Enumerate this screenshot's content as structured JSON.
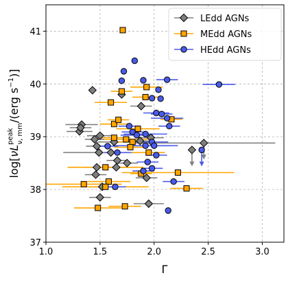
{
  "chart_data": {
    "type": "scatter",
    "xlabel": "Γ",
    "ylabel_parts": {
      "prefix": "log[",
      "nu": "ν",
      "L": "L",
      "sup": "peak",
      "sub": "ν, mm",
      "suffix": "/(erg s",
      "exp": "−1",
      "close": ")]"
    },
    "xlim": [
      1.0,
      3.2
    ],
    "ylim": [
      37.0,
      41.5
    ],
    "xticks": [
      "1.0",
      "1.5",
      "2.0",
      "2.5",
      "3.0"
    ],
    "yticks": [
      "37",
      "38",
      "39",
      "40",
      "41"
    ],
    "grid": true,
    "legend_position": "top-right",
    "series": [
      {
        "name": "LEdd AGNs",
        "marker": "diamond",
        "fill": "#7f7f7f",
        "errcolor": "#808080",
        "points": [
          {
            "x": 1.43,
            "y": 39.88,
            "xerr": 0.0
          },
          {
            "x": 1.33,
            "y": 39.23,
            "xerr": 0.15
          },
          {
            "x": 1.31,
            "y": 39.1,
            "xerr": 0.12
          },
          {
            "x": 1.32,
            "y": 39.17,
            "xerr": 0.1
          },
          {
            "x": 1.5,
            "y": 39.02,
            "xerr": 0.12
          },
          {
            "x": 1.47,
            "y": 38.82,
            "xerr": 0.1
          },
          {
            "x": 1.45,
            "y": 38.95,
            "xerr": 0.09
          },
          {
            "x": 1.49,
            "y": 38.7,
            "xerr": 0.33
          },
          {
            "x": 1.47,
            "y": 38.42,
            "xerr": 0.1
          },
          {
            "x": 1.46,
            "y": 38.28,
            "xerr": 0.1
          },
          {
            "x": 1.52,
            "y": 38.05,
            "xerr": 0.12
          },
          {
            "x": 1.5,
            "y": 37.85,
            "xerr": 0.1
          },
          {
            "x": 1.6,
            "y": 38.7,
            "xerr": 0.1
          },
          {
            "x": 1.63,
            "y": 38.9,
            "xerr": 0.15
          },
          {
            "x": 1.65,
            "y": 38.42,
            "xerr": 0.1
          },
          {
            "x": 1.66,
            "y": 38.55,
            "xerr": 0.1
          },
          {
            "x": 1.75,
            "y": 38.5,
            "xerr": 0.1
          },
          {
            "x": 1.7,
            "y": 39.8,
            "xerr": 0.0
          },
          {
            "x": 1.88,
            "y": 39.58,
            "xerr": 0.1
          },
          {
            "x": 1.87,
            "y": 38.92,
            "xerr": 0.13
          },
          {
            "x": 1.97,
            "y": 38.98,
            "xerr": 0.12
          },
          {
            "x": 1.93,
            "y": 38.22,
            "xerr": 0.1
          },
          {
            "x": 1.95,
            "y": 37.73,
            "xerr": 0.14
          },
          {
            "x": 2.35,
            "y": 38.75,
            "xerr": 0.0,
            "upper_limit": true
          },
          {
            "x": 2.46,
            "y": 38.88,
            "xerr": 0.66,
            "upper_limit": true
          }
        ]
      },
      {
        "name": "MEdd AGNs",
        "marker": "square",
        "fill": "#ffa500",
        "errcolor": "#ffa500",
        "points": [
          {
            "x": 1.71,
            "y": 41.02,
            "xerr": 0.0
          },
          {
            "x": 1.7,
            "y": 39.86,
            "xerr": 0.1
          },
          {
            "x": 1.6,
            "y": 39.65,
            "xerr": 0.15
          },
          {
            "x": 1.93,
            "y": 39.94,
            "xerr": 0.15
          },
          {
            "x": 1.92,
            "y": 39.75,
            "xerr": 0.12
          },
          {
            "x": 1.63,
            "y": 39.24,
            "xerr": 0.13
          },
          {
            "x": 1.67,
            "y": 39.32,
            "xerr": 0.1
          },
          {
            "x": 1.85,
            "y": 39.15,
            "xerr": 0.2
          },
          {
            "x": 1.63,
            "y": 38.98,
            "xerr": 0.15
          },
          {
            "x": 1.74,
            "y": 38.95,
            "xerr": 0.2
          },
          {
            "x": 1.8,
            "y": 38.9,
            "xerr": 0.15
          },
          {
            "x": 1.78,
            "y": 38.8,
            "xerr": 0.15
          },
          {
            "x": 1.95,
            "y": 38.7,
            "xerr": 0.15
          },
          {
            "x": 2.16,
            "y": 39.33,
            "xerr": 0.1
          },
          {
            "x": 1.55,
            "y": 38.42,
            "xerr": 0.35
          },
          {
            "x": 1.58,
            "y": 38.15,
            "xerr": 0.2
          },
          {
            "x": 1.35,
            "y": 38.1,
            "xerr": 0.35
          },
          {
            "x": 1.55,
            "y": 38.05,
            "xerr": 0.4
          },
          {
            "x": 1.48,
            "y": 37.65,
            "xerr": 0.22
          },
          {
            "x": 1.73,
            "y": 37.68,
            "xerr": 0.15
          },
          {
            "x": 1.88,
            "y": 38.3,
            "xerr": 0.1
          },
          {
            "x": 2.22,
            "y": 38.32,
            "xerr": 0.52
          },
          {
            "x": 2.3,
            "y": 38.02,
            "xerr": 0.15
          }
        ]
      },
      {
        "name": "HEdd AGNs",
        "marker": "circle",
        "fill": "#4a5be8",
        "errcolor": "#4a5be8",
        "points": [
          {
            "x": 1.82,
            "y": 40.44,
            "xerr": 0.0
          },
          {
            "x": 1.72,
            "y": 40.24,
            "xerr": 0.0
          },
          {
            "x": 1.7,
            "y": 40.06,
            "xerr": 0.0
          },
          {
            "x": 1.9,
            "y": 40.07,
            "xerr": 0.0
          },
          {
            "x": 2.12,
            "y": 40.08,
            "xerr": 0.1
          },
          {
            "x": 2.6,
            "y": 39.99,
            "xerr": 0.15
          },
          {
            "x": 2.04,
            "y": 39.89,
            "xerr": 0.0
          },
          {
            "x": 1.98,
            "y": 39.73,
            "xerr": 0.0
          },
          {
            "x": 2.06,
            "y": 39.72,
            "xerr": 0.0
          },
          {
            "x": 2.02,
            "y": 39.45,
            "xerr": 0.12
          },
          {
            "x": 2.07,
            "y": 39.43,
            "xerr": 0.1
          },
          {
            "x": 2.12,
            "y": 39.35,
            "xerr": 0.15
          },
          {
            "x": 2.14,
            "y": 39.2,
            "xerr": 0.1
          },
          {
            "x": 1.77,
            "y": 39.2,
            "xerr": 0.1
          },
          {
            "x": 1.8,
            "y": 39.09,
            "xerr": 0.1
          },
          {
            "x": 1.84,
            "y": 39.03,
            "xerr": 0.15
          },
          {
            "x": 1.92,
            "y": 39.05,
            "xerr": 0.2
          },
          {
            "x": 1.98,
            "y": 38.9,
            "xerr": 0.15
          },
          {
            "x": 1.92,
            "y": 38.83,
            "xerr": 0.3
          },
          {
            "x": 2.0,
            "y": 38.83,
            "xerr": 0.15
          },
          {
            "x": 1.57,
            "y": 38.82,
            "xerr": 0.1
          },
          {
            "x": 1.66,
            "y": 38.7,
            "xerr": 0.12
          },
          {
            "x": 2.02,
            "y": 38.65,
            "xerr": 0.1
          },
          {
            "x": 1.94,
            "y": 38.52,
            "xerr": 0.1
          },
          {
            "x": 1.9,
            "y": 38.35,
            "xerr": 0.1
          },
          {
            "x": 1.98,
            "y": 38.4,
            "xerr": 0.1
          },
          {
            "x": 1.64,
            "y": 38.05,
            "xerr": 0.1
          },
          {
            "x": 2.18,
            "y": 38.15,
            "xerr": 0.1
          },
          {
            "x": 2.44,
            "y": 38.75,
            "xerr": 0.0,
            "upper_limit": true
          },
          {
            "x": 2.13,
            "y": 37.6,
            "xerr": 0.0
          }
        ]
      }
    ]
  }
}
